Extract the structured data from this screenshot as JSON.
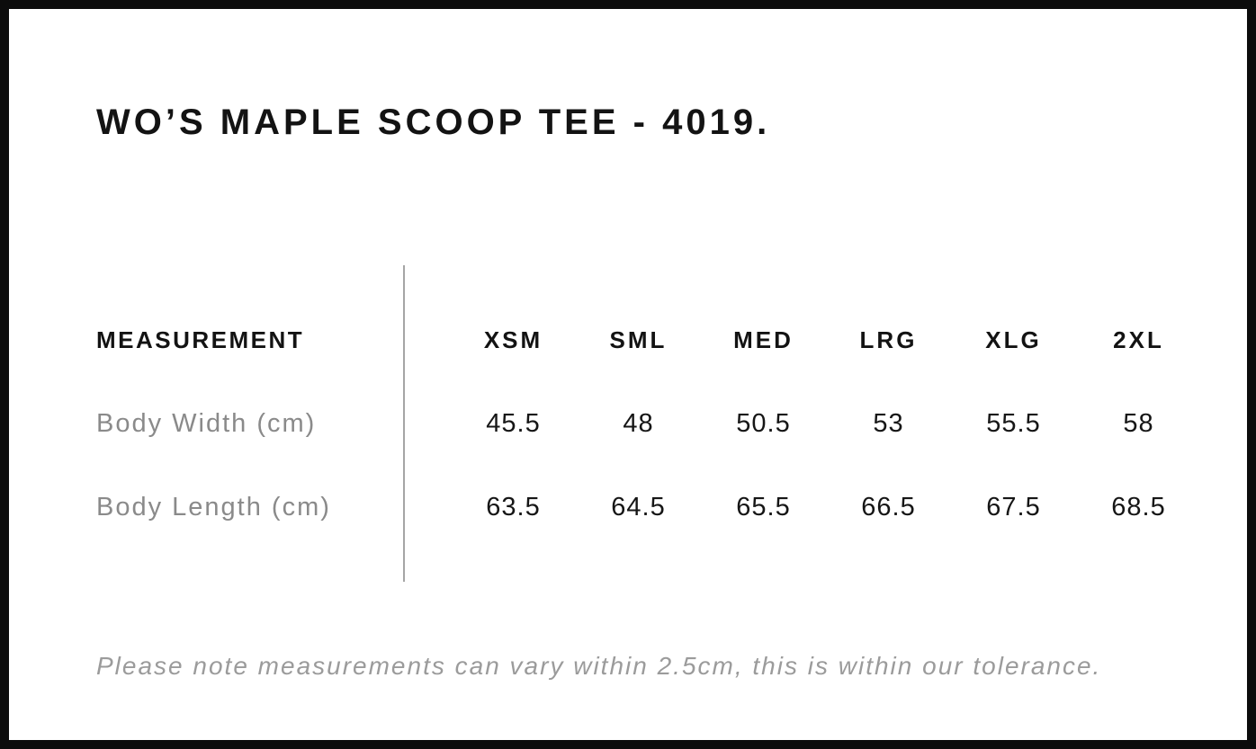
{
  "title": "WO’S MAPLE SCOOP TEE - 4019.",
  "table": {
    "measurement_header": "MEASUREMENT",
    "size_headers": [
      "XSM",
      "SML",
      "MED",
      "LRG",
      "XLG",
      "2XL"
    ],
    "rows": [
      {
        "label": "Body Width (cm)",
        "values": [
          "45.5",
          "48",
          "50.5",
          "53",
          "55.5",
          "58"
        ]
      },
      {
        "label": "Body Length (cm)",
        "values": [
          "63.5",
          "64.5",
          "65.5",
          "66.5",
          "67.5",
          "68.5"
        ]
      }
    ]
  },
  "note": "Please note measurements can vary within 2.5cm, this is within our tolerance.",
  "colors": {
    "frame_border": "#0c0c0c",
    "heading_text": "#131313",
    "value_text": "#161616",
    "label_gray": "#8a8a8a",
    "note_gray": "#9b9b9b",
    "divider_gray": "#a5a5a5"
  },
  "chart_data": {
    "type": "table",
    "title": "WO’S MAPLE SCOOP TEE - 4019.",
    "columns": [
      "MEASUREMENT",
      "XSM",
      "SML",
      "MED",
      "LRG",
      "XLG",
      "2XL"
    ],
    "rows": [
      [
        "Body Width (cm)",
        45.5,
        48,
        50.5,
        53,
        55.5,
        58
      ],
      [
        "Body Length (cm)",
        63.5,
        64.5,
        65.5,
        66.5,
        67.5,
        68.5
      ]
    ],
    "footnote": "Please note measurements can vary within 2.5cm, this is within our tolerance."
  }
}
